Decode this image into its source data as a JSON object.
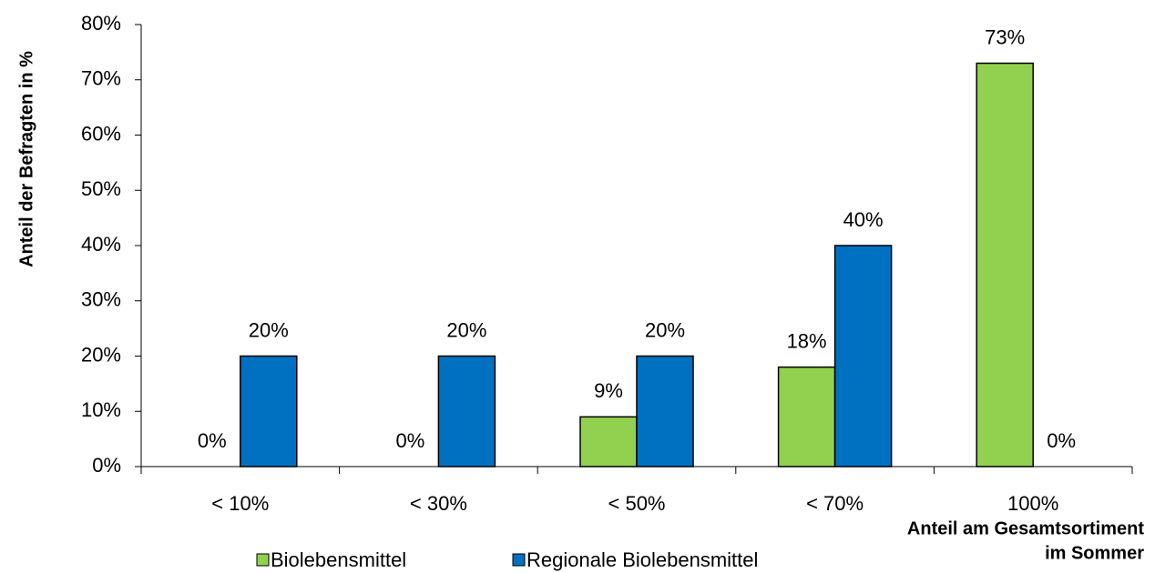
{
  "chart_data": {
    "type": "bar",
    "y_label": "Anteil der Befragten in %",
    "x_label": [
      "Anteil am Gesamtsortiment",
      "im Sommer"
    ],
    "categories": [
      "< 10%",
      "< 30%",
      "< 50%",
      "< 70%",
      "100%"
    ],
    "series": [
      {
        "name": "Biolebensmittel",
        "color": "#92d050",
        "values": [
          0,
          0,
          9,
          18,
          73
        ],
        "value_labels": [
          "0%",
          "0%",
          "9%",
          "18%",
          "73%"
        ]
      },
      {
        "name": "Regionale Biolebensmittel",
        "color": "#0070c0",
        "values": [
          20,
          20,
          20,
          40,
          0
        ],
        "value_labels": [
          "20%",
          "20%",
          "20%",
          "40%",
          "0%"
        ]
      }
    ],
    "ylim": [
      0,
      80
    ],
    "yticks": [
      {
        "value": 0,
        "label": "0%"
      },
      {
        "value": 10,
        "label": "10%"
      },
      {
        "value": 20,
        "label": "20%"
      },
      {
        "value": 30,
        "label": "30%"
      },
      {
        "value": 40,
        "label": "40%"
      },
      {
        "value": 50,
        "label": "50%"
      },
      {
        "value": 60,
        "label": "60%"
      },
      {
        "value": 70,
        "label": "70%"
      },
      {
        "value": 80,
        "label": "80%"
      }
    ],
    "legend": "bottom"
  }
}
